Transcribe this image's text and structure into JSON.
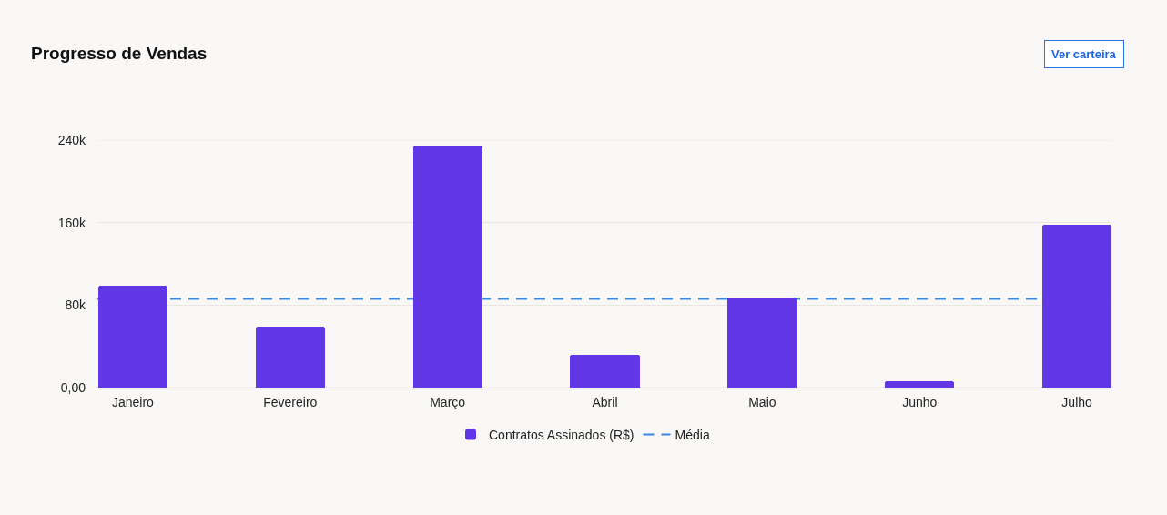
{
  "chart_data": {
    "type": "bar",
    "title": "Progresso de Vendas",
    "categories": [
      "Janeiro",
      "Fevereiro",
      "Março",
      "Abril",
      "Maio",
      "Junho",
      "Julho"
    ],
    "series": [
      {
        "name": "Contratos Assinados (R$)",
        "color": "#6238e6",
        "values": [
          99000,
          59000,
          235000,
          32000,
          87000,
          6000,
          158000
        ]
      }
    ],
    "ylim": [
      0,
      240000
    ],
    "yticks": [
      {
        "value": 0,
        "label": "0,00"
      },
      {
        "value": 80000,
        "label": "80k"
      },
      {
        "value": 160000,
        "label": "160k"
      },
      {
        "value": 240000,
        "label": "240k"
      }
    ],
    "grid": "y",
    "legend": "bottom",
    "ref_lines": [
      {
        "axis": "y",
        "value": 86000,
        "label": "Média",
        "color": "#3a87e0",
        "line_style": "dashed"
      }
    ],
    "annotations": [
      "Ver carteira"
    ]
  }
}
